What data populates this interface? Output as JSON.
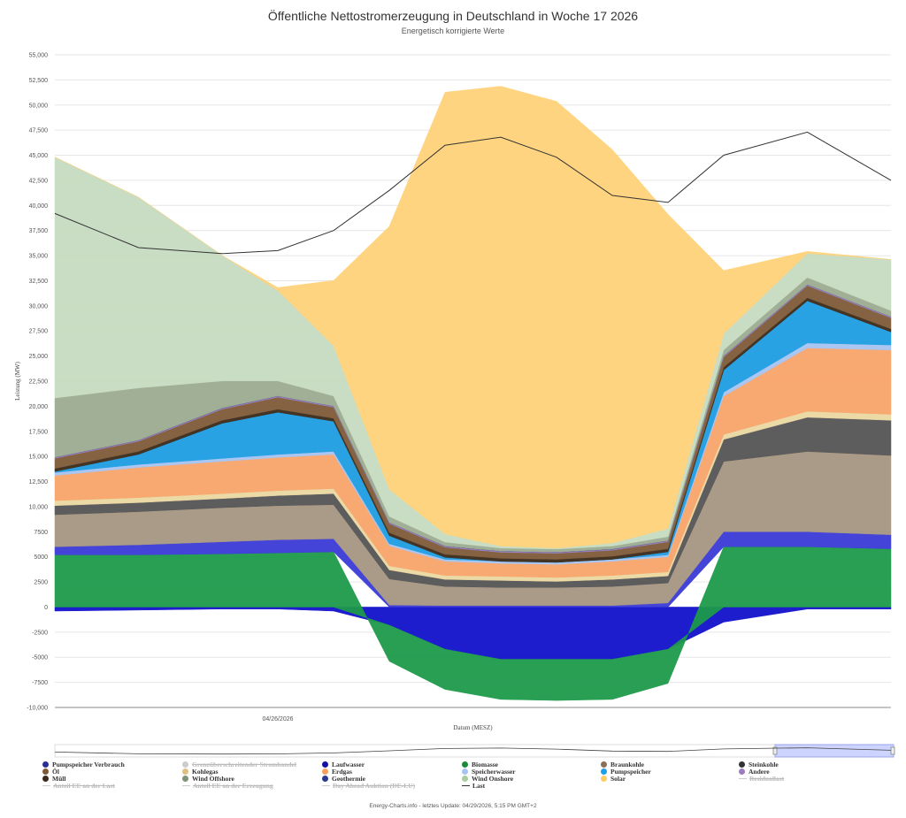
{
  "header": {
    "title": "Öffentliche Nettostromerzeugung in Deutschland in Woche 17 2026",
    "subtitle": "Energetisch korrigierte Werte"
  },
  "footer": {
    "text": "Energy-Charts.info - letztes Update: 04/29/2026, 5:15 PM GMT+2"
  },
  "chart_data": {
    "type": "area",
    "title": "Öffentliche Nettostromerzeugung in Deutschland in Woche 17 2026",
    "subtitle": "Energetisch korrigierte Werte",
    "ylabel": "Leistung (MW)",
    "xlabel": "Datum (MESZ)",
    "ylim": [
      -10000,
      55000
    ],
    "yticks": [
      55000,
      52500,
      50000,
      47500,
      45000,
      42500,
      40000,
      37500,
      35000,
      32500,
      30000,
      27500,
      25000,
      22500,
      20000,
      17500,
      15000,
      12500,
      10000,
      7500,
      5000,
      2500,
      0,
      -2500,
      -5000,
      -7500,
      -10000
    ],
    "ytick_labels": [
      "55,000",
      "52,500",
      "50,000",
      "47,500",
      "45,000",
      "42,500",
      "40,000",
      "37,500",
      "35,000",
      "32,500",
      "30,000",
      "27,500",
      "25,000",
      "22,500",
      "20,000",
      "17,500",
      "15,000",
      "12,500",
      "10,000",
      "7500",
      "5000",
      "2500",
      "0",
      "-2500",
      "-5000",
      "-7500",
      "-10,000"
    ],
    "x_hours": [
      0,
      3,
      6,
      8,
      10,
      12,
      14,
      16,
      18,
      20,
      22,
      24,
      27,
      30
    ],
    "x_range_hours": [
      0,
      30
    ],
    "xtick": {
      "hour": 8,
      "label": "04/26/2026"
    },
    "series": [
      {
        "name": "Pumpspeicher Verbrauch",
        "color": "#1111cc",
        "stack": "neg",
        "values": [
          -400,
          -300,
          -200,
          -200,
          -400,
          -1800,
          -4200,
          -5200,
          -5200,
          -5200,
          -4200,
          -1500,
          -200,
          -200
        ]
      },
      {
        "name": "Biomasse",
        "color": "#1e9a4b",
        "stack": "mixed",
        "values": [
          5200,
          5200,
          5300,
          5400,
          5500,
          -3600,
          -4000,
          -4000,
          -4100,
          -4000,
          -3400,
          6000,
          6000,
          5800
        ]
      },
      {
        "name": "Laufwasser",
        "color": "#3a3ad8",
        "stack": "pos",
        "values": [
          800,
          1000,
          1200,
          1300,
          1300,
          200,
          150,
          150,
          150,
          150,
          400,
          1500,
          1500,
          1400
        ]
      },
      {
        "name": "Braunkohle",
        "color": "#a69582",
        "stack": "pos",
        "values": [
          3200,
          3300,
          3400,
          3400,
          3400,
          2600,
          1900,
          1800,
          1800,
          1900,
          2000,
          7000,
          8000,
          7900
        ]
      },
      {
        "name": "Steinkohle",
        "color": "#555555",
        "stack": "pos",
        "values": [
          900,
          900,
          900,
          1000,
          1100,
          900,
          700,
          700,
          600,
          700,
          700,
          2200,
          3400,
          3500
        ]
      },
      {
        "name": "Kohlegas",
        "color": "#ead7a2",
        "stack": "pos",
        "values": [
          500,
          500,
          500,
          500,
          500,
          400,
          400,
          400,
          400,
          400,
          400,
          500,
          600,
          600
        ]
      },
      {
        "name": "Erdgas",
        "color": "#f8a56a",
        "stack": "pos",
        "values": [
          2500,
          3000,
          3200,
          3300,
          3400,
          2000,
          1400,
          1300,
          1300,
          1400,
          1500,
          3800,
          6300,
          6400
        ]
      },
      {
        "name": "Speicherwasser",
        "color": "#a7c3f0",
        "stack": "pos",
        "values": [
          300,
          300,
          300,
          300,
          300,
          200,
          200,
          200,
          200,
          200,
          200,
          400,
          500,
          500
        ]
      },
      {
        "name": "Pumpspeicher",
        "color": "#1e9ee3",
        "stack": "pos",
        "values": [
          100,
          1000,
          3500,
          4200,
          3000,
          800,
          200,
          0,
          0,
          0,
          300,
          2200,
          4200,
          1300
        ]
      },
      {
        "name": "Müll",
        "color": "#3b2a1a",
        "stack": "pos",
        "values": [
          300,
          300,
          300,
          300,
          300,
          300,
          300,
          300,
          300,
          300,
          300,
          300,
          300,
          300
        ]
      },
      {
        "name": "Öl",
        "color": "#7e5a38",
        "stack": "pos",
        "values": [
          1000,
          1000,
          1100,
          1200,
          1100,
          900,
          700,
          600,
          600,
          600,
          700,
          1000,
          1200,
          1100
        ]
      },
      {
        "name": "Andere",
        "color": "#9c7cbb",
        "stack": "pos",
        "values": [
          100,
          100,
          100,
          100,
          100,
          100,
          100,
          100,
          100,
          100,
          100,
          100,
          100,
          100
        ]
      },
      {
        "name": "Geothermie",
        "color": "#2a3a8f",
        "stack": "pos",
        "values": [
          20,
          20,
          20,
          20,
          20,
          20,
          20,
          20,
          20,
          20,
          20,
          20,
          20,
          20
        ]
      },
      {
        "name": "Wind Offshore",
        "color": "#9cab92",
        "stack": "pos",
        "values": [
          5900,
          5200,
          2700,
          1500,
          1000,
          600,
          400,
          300,
          300,
          300,
          400,
          600,
          700,
          600
        ]
      },
      {
        "name": "Wind Onshore",
        "color": "#c6dcc0",
        "stack": "pos",
        "values": [
          24000,
          19000,
          12500,
          9000,
          5000,
          2700,
          800,
          200,
          100,
          300,
          800,
          1600,
          2400,
          5100
        ]
      },
      {
        "name": "Solar",
        "color": "#ffd27a",
        "stack": "pos",
        "values": [
          0,
          0,
          0,
          300,
          6500,
          26200,
          44000,
          45800,
          44500,
          39200,
          31300,
          6300,
          200,
          0
        ]
      },
      {
        "name": "Last",
        "color": "#333333",
        "stack": "line",
        "values": [
          39200,
          35800,
          35200,
          35500,
          37500,
          41500,
          46000,
          46800,
          44800,
          41000,
          40300,
          45000,
          47300,
          42500
        ]
      }
    ]
  },
  "legend": {
    "items": [
      {
        "label": "Pumpspeicher Verbrauch",
        "color": "#2a3090",
        "kind": "dot",
        "hidden": false
      },
      {
        "label": "Grenzüberschreitender Stromhandel",
        "color": "#bbbbbb",
        "kind": "dot",
        "hidden": true
      },
      {
        "label": "Laufwasser",
        "color": "#1111aa",
        "kind": "dot",
        "hidden": false
      },
      {
        "label": "Biomasse",
        "color": "#1a8a3a",
        "kind": "dot",
        "hidden": false
      },
      {
        "label": "Braunkohle",
        "color": "#8a6f5a",
        "kind": "dot",
        "hidden": false
      },
      {
        "label": "Steinkohle",
        "color": "#333333",
        "kind": "dot",
        "hidden": false
      },
      {
        "label": "Öl",
        "color": "#7e5a38",
        "kind": "dot",
        "hidden": false
      },
      {
        "label": "Kohlegas",
        "color": "#e0c080",
        "kind": "dot",
        "hidden": false
      },
      {
        "label": "Erdgas",
        "color": "#f5a060",
        "kind": "dot",
        "hidden": false
      },
      {
        "label": "Speicherwasser",
        "color": "#a7c3f0",
        "kind": "dot",
        "hidden": false
      },
      {
        "label": "Pumpspeicher",
        "color": "#1e9ee3",
        "kind": "dot",
        "hidden": false
      },
      {
        "label": "Andere",
        "color": "#9c7cbb",
        "kind": "dot",
        "hidden": false
      },
      {
        "label": "Müll",
        "color": "#3b2a1a",
        "kind": "dot",
        "hidden": false
      },
      {
        "label": "Wind Offshore",
        "color": "#7f9378",
        "kind": "dot",
        "hidden": false
      },
      {
        "label": "Geothermie",
        "color": "#2a3a8f",
        "kind": "dot",
        "hidden": false
      },
      {
        "label": "Wind Onshore",
        "color": "#a8cca0",
        "kind": "dot",
        "hidden": false
      },
      {
        "label": "Solar",
        "color": "#ffcc66",
        "kind": "dot",
        "hidden": false
      },
      {
        "label": "Residuallast",
        "color": "#bbbbbb",
        "kind": "line",
        "hidden": true
      },
      {
        "label": "Anteil EE an der Last",
        "color": "#bbbbbb",
        "kind": "line",
        "hidden": true
      },
      {
        "label": "Anteil EE an der Erzeugung",
        "color": "#bbbbbb",
        "kind": "line",
        "hidden": true
      },
      {
        "label": "Day Ahead Auktion (DE-LU)",
        "color": "#bbbbbb",
        "kind": "line",
        "hidden": true
      },
      {
        "label": "Last",
        "color": "#333333",
        "kind": "line",
        "hidden": false
      }
    ]
  }
}
